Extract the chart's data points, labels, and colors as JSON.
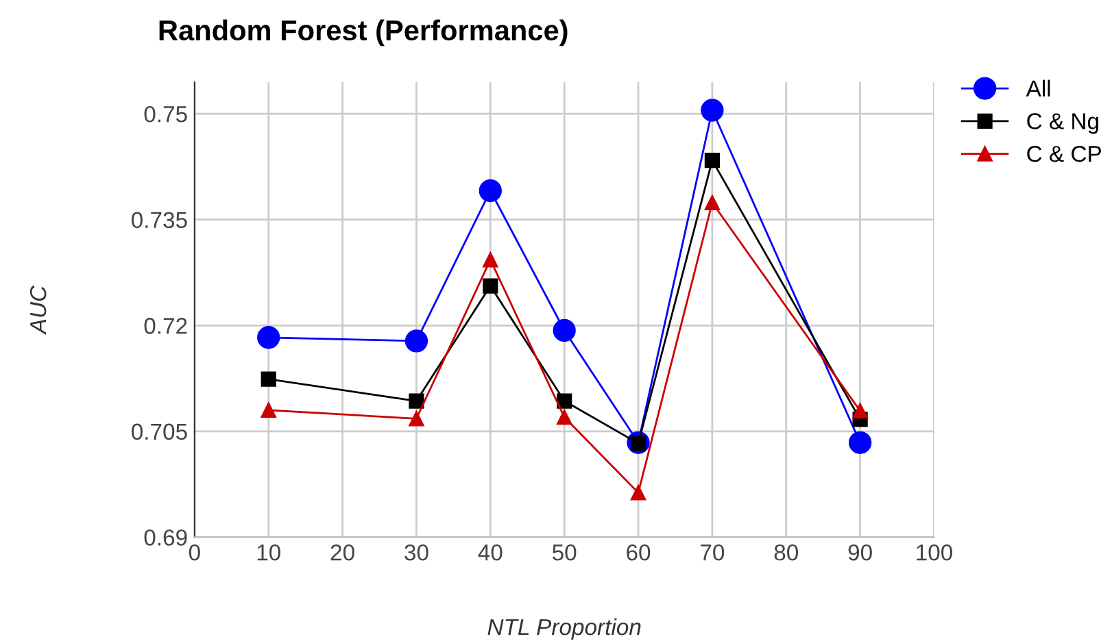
{
  "chart_data": {
    "type": "line",
    "title": "Random Forest (Performance)",
    "xlabel": "NTL Proportion",
    "ylabel": "AUC",
    "x": [
      10,
      30,
      40,
      50,
      60,
      70,
      90
    ],
    "series": [
      {
        "name": "All",
        "color": "#0000ff",
        "marker": "circle",
        "values": [
          0.7183,
          0.7178,
          0.7391,
          0.7193,
          0.7034,
          0.7505,
          0.7034
        ]
      },
      {
        "name": "C & Ng",
        "color": "#000000",
        "marker": "square",
        "values": [
          0.7124,
          0.7093,
          0.7256,
          0.7093,
          0.7033,
          0.7434,
          0.7067
        ]
      },
      {
        "name": "C & CP",
        "color": "#cc0000",
        "marker": "triangle",
        "values": [
          0.708,
          0.7068,
          0.7293,
          0.707,
          0.6963,
          0.7374,
          0.7079
        ]
      }
    ],
    "xlim": [
      0,
      100
    ],
    "xticks": [
      0,
      10,
      20,
      30,
      40,
      50,
      60,
      70,
      80,
      90,
      100
    ],
    "ylim": [
      0.69,
      0.7545
    ],
    "yticks": [
      0.69,
      0.705,
      0.72,
      0.735,
      0.75
    ],
    "grid": true,
    "legend": "top right",
    "line_style": "solid"
  }
}
